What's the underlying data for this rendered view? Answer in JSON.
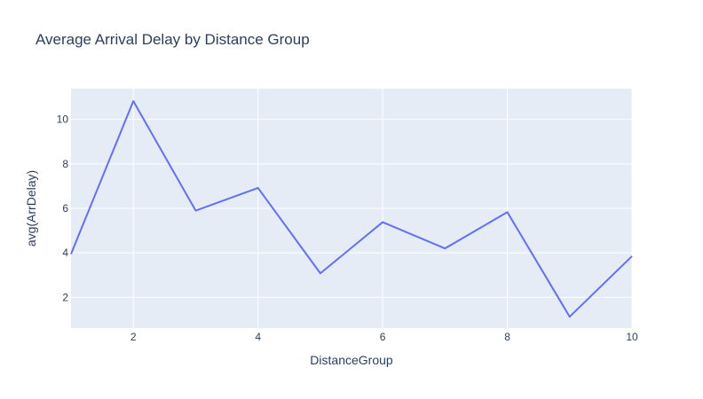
{
  "chart_data": {
    "type": "line",
    "title": "Average Arrival Delay by Distance Group",
    "xlabel": "DistanceGroup",
    "ylabel": "avg(ArrDelay)",
    "x": [
      1,
      2,
      3,
      4,
      5,
      6,
      7,
      8,
      9,
      10
    ],
    "series": [
      {
        "values": [
          3.95,
          10.82,
          5.9,
          6.92,
          3.08,
          5.38,
          4.2,
          5.83,
          1.13,
          3.85
        ]
      }
    ],
    "xlim": [
      1,
      10
    ],
    "ylim": [
      0.62,
      11.38
    ],
    "x_ticks": [
      2,
      4,
      6,
      8,
      10
    ],
    "y_ticks": [
      2,
      4,
      6,
      8,
      10
    ],
    "grid": true,
    "colors": {
      "line": "#636efa",
      "plot_bg": "#e5ecf6",
      "grid": "#ffffff",
      "text": "#2a3f5f"
    }
  }
}
